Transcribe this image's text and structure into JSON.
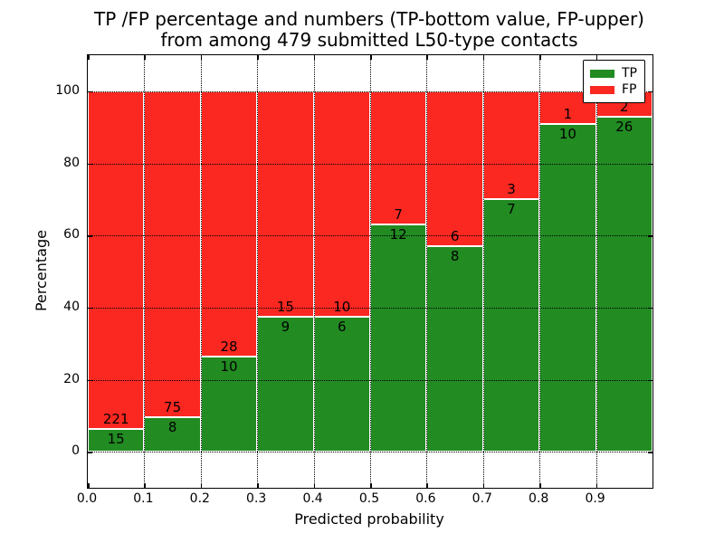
{
  "title": {
    "line1": "TP /FP percentage and numbers (TP-bottom value, FP-upper)",
    "line2": "from among 479 submitted L50-type contacts"
  },
  "colors": {
    "tp_green": "#228b22",
    "fp_red": "#fa2821",
    "grid": "#000000",
    "background": "#ffffff",
    "text": "#000000"
  },
  "chart_data": {
    "type": "bar",
    "stacked": true,
    "normalized": "each bin stacked to 100%",
    "title": "TP /FP percentage and numbers (TP-bottom value, FP-upper) from among 479 submitted L50-type contacts",
    "xlabel": "Predicted probability",
    "ylabel": "Percentage",
    "xlim": [
      0.0,
      1.0
    ],
    "ylim": [
      -10,
      110
    ],
    "xticks": [
      "0.0",
      "0.1",
      "0.2",
      "0.3",
      "0.4",
      "0.5",
      "0.6",
      "0.7",
      "0.8",
      "0.9"
    ],
    "yticks": [
      0,
      20,
      40,
      60,
      80,
      100
    ],
    "grid": true,
    "total_contacts": 479,
    "bin_edges": [
      0.0,
      0.1,
      0.2,
      0.3,
      0.4,
      0.5,
      0.6,
      0.7,
      0.8,
      0.9,
      1.0
    ],
    "series": [
      {
        "name": "TP",
        "color": "#228b22",
        "counts": [
          15,
          8,
          10,
          9,
          6,
          12,
          8,
          7,
          10,
          26
        ]
      },
      {
        "name": "FP",
        "color": "#fa2821",
        "counts": [
          221,
          75,
          28,
          15,
          10,
          7,
          6,
          3,
          1,
          2
        ]
      }
    ],
    "tp_percent_by_bin": [
      6.4,
      9.6,
      26.3,
      37.5,
      37.5,
      63.2,
      57.1,
      70.0,
      90.9,
      92.9
    ],
    "legend": {
      "position": "upper right",
      "entries": [
        {
          "label": "TP",
          "color": "#228b22"
        },
        {
          "label": "FP",
          "color": "#fa2821"
        }
      ]
    }
  }
}
